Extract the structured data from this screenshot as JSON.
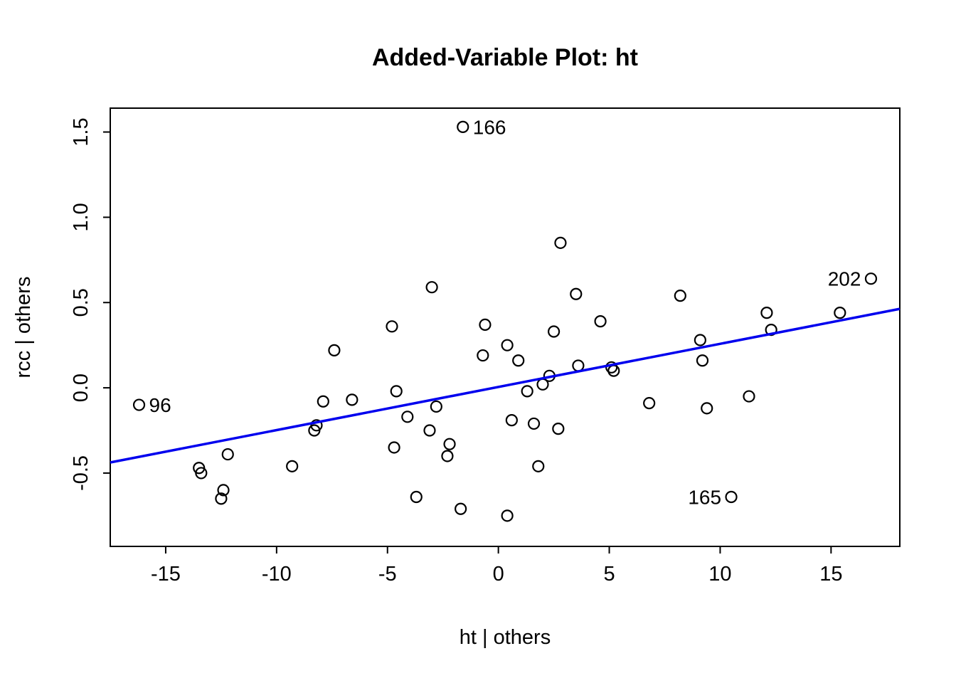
{
  "title": "Added-Variable Plot: ht",
  "chart_data": {
    "type": "scatter",
    "title": "Added-Variable Plot: ht",
    "xlabel": "ht | others",
    "ylabel": "rcc  | others",
    "xlim": [
      -17.5,
      18.1
    ],
    "ylim": [
      -0.93,
      1.64
    ],
    "grid": false,
    "legend": "none",
    "x_ticks": [
      {
        "value": -15,
        "label": "-15"
      },
      {
        "value": -10,
        "label": "-10"
      },
      {
        "value": -5,
        "label": "-5"
      },
      {
        "value": 0,
        "label": "0"
      },
      {
        "value": 5,
        "label": "5"
      },
      {
        "value": 10,
        "label": "10"
      },
      {
        "value": 15,
        "label": "15"
      }
    ],
    "y_ticks": [
      {
        "value": -0.5,
        "label": "-0.5"
      },
      {
        "value": 0.0,
        "label": "0.0"
      },
      {
        "value": 0.5,
        "label": "0.5"
      },
      {
        "value": 1.0,
        "label": "1.0"
      },
      {
        "value": 1.5,
        "label": "1.5"
      }
    ],
    "point_style": {
      "shape": "open-circle",
      "color": "#000000"
    },
    "regression_line": {
      "slope": 0.0253,
      "intercept": 0.005,
      "color": "#0000EE",
      "x_start": -17.5,
      "x_end": 18.1
    },
    "labeled_points": [
      {
        "id": "166",
        "x": -1.6,
        "y": 1.53,
        "side": "right"
      },
      {
        "id": "202",
        "x": 16.8,
        "y": 0.64,
        "side": "left"
      },
      {
        "id": "96",
        "x": -16.2,
        "y": -0.1,
        "side": "right"
      },
      {
        "id": "165",
        "x": 10.5,
        "y": -0.64,
        "side": "left"
      }
    ],
    "points": [
      [
        2.8,
        0.85
      ],
      [
        3.5,
        0.55
      ],
      [
        8.2,
        0.54
      ],
      [
        -3.0,
        0.59
      ],
      [
        12.1,
        0.44
      ],
      [
        15.4,
        0.44
      ],
      [
        12.3,
        0.34
      ],
      [
        -0.6,
        0.37
      ],
      [
        -4.8,
        0.36
      ],
      [
        4.6,
        0.39
      ],
      [
        2.5,
        0.33
      ],
      [
        0.4,
        0.25
      ],
      [
        9.1,
        0.28
      ],
      [
        -0.7,
        0.19
      ],
      [
        0.9,
        0.16
      ],
      [
        9.2,
        0.16
      ],
      [
        3.6,
        0.13
      ],
      [
        5.1,
        0.12
      ],
      [
        5.2,
        0.1
      ],
      [
        2.3,
        0.07
      ],
      [
        1.3,
        -0.02
      ],
      [
        2.0,
        0.02
      ],
      [
        -4.6,
        -0.02
      ],
      [
        11.3,
        -0.05
      ],
      [
        -7.9,
        -0.08
      ],
      [
        -6.6,
        -0.07
      ],
      [
        -7.4,
        0.22
      ],
      [
        -2.8,
        -0.11
      ],
      [
        6.8,
        -0.09
      ],
      [
        9.4,
        -0.12
      ],
      [
        0.6,
        -0.19
      ],
      [
        -8.2,
        -0.22
      ],
      [
        -8.3,
        -0.25
      ],
      [
        1.6,
        -0.21
      ],
      [
        -4.1,
        -0.17
      ],
      [
        2.7,
        -0.24
      ],
      [
        -3.1,
        -0.25
      ],
      [
        -2.2,
        -0.33
      ],
      [
        -4.7,
        -0.35
      ],
      [
        -2.3,
        -0.4
      ],
      [
        -12.2,
        -0.39
      ],
      [
        -9.3,
        -0.46
      ],
      [
        1.8,
        -0.46
      ],
      [
        -13.4,
        -0.5
      ],
      [
        -13.5,
        -0.47
      ],
      [
        -12.4,
        -0.6
      ],
      [
        -12.5,
        -0.65
      ],
      [
        -3.7,
        -0.64
      ],
      [
        -1.7,
        -0.71
      ],
      [
        0.4,
        -0.75
      ]
    ]
  }
}
